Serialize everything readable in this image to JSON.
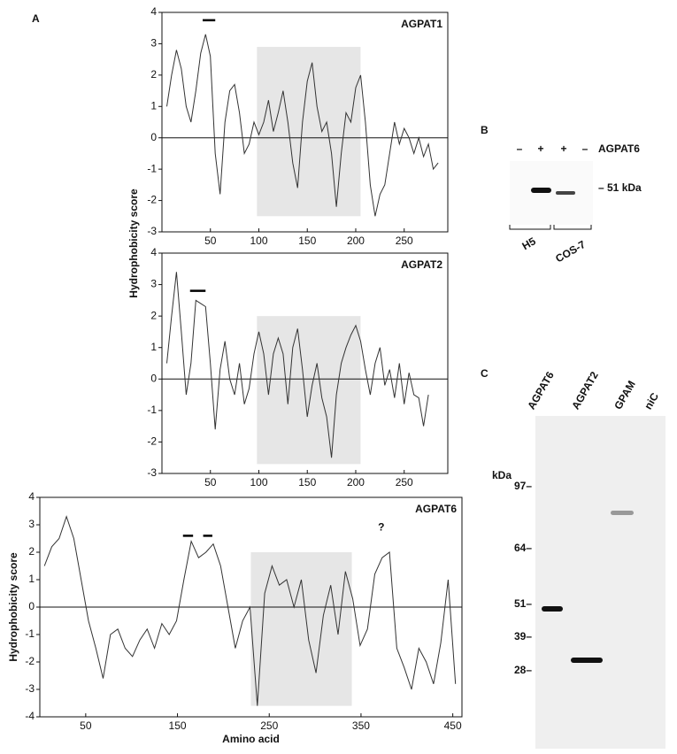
{
  "chart_data": [
    {
      "type": "line",
      "title": "AGPAT1",
      "ylabel": "Hydrophobicity score",
      "x": [
        5,
        10,
        15,
        20,
        25,
        30,
        35,
        40,
        45,
        50,
        55,
        60,
        65,
        70,
        75,
        80,
        85,
        90,
        95,
        100,
        105,
        110,
        115,
        120,
        125,
        130,
        135,
        140,
        145,
        150,
        155,
        160,
        165,
        170,
        175,
        180,
        185,
        190,
        195,
        200,
        205,
        210,
        215,
        220,
        225,
        230,
        235,
        240,
        245,
        250,
        255,
        260,
        265,
        270,
        275,
        280,
        285
      ],
      "series": [
        {
          "name": "AGPAT1",
          "color": "#333333",
          "values": [
            1.0,
            2.0,
            2.8,
            2.2,
            1.0,
            0.5,
            1.5,
            2.7,
            3.3,
            2.6,
            -0.5,
            -1.8,
            0.5,
            1.5,
            1.7,
            0.8,
            -0.5,
            -0.2,
            0.5,
            0.1,
            0.5,
            1.2,
            0.2,
            0.8,
            1.5,
            0.5,
            -0.8,
            -1.6,
            0.5,
            1.8,
            2.4,
            1.0,
            0.2,
            0.5,
            -0.5,
            -2.2,
            -0.5,
            0.8,
            0.5,
            1.6,
            2.0,
            0.5,
            -1.5,
            -2.5,
            -1.8,
            -1.5,
            -0.5,
            0.5,
            -0.2,
            0.3,
            0.0,
            -0.5,
            0.0,
            -0.6,
            -0.2,
            -1.0,
            -0.8
          ]
        }
      ],
      "xlim": [
        0,
        295
      ],
      "ylim": [
        -3,
        4
      ],
      "xticks": [
        50,
        100,
        150,
        200,
        250
      ],
      "yticks": [
        -3,
        -2,
        -1,
        0,
        1,
        2,
        3,
        4
      ],
      "zero_line": true,
      "highlight_x": [
        98,
        205
      ],
      "highlight_y": [
        -2.5,
        2.9
      ],
      "markers": [
        {
          "x": [
            42,
            55
          ],
          "y": 3.75
        }
      ]
    },
    {
      "type": "line",
      "title": "AGPAT2",
      "x": [
        5,
        10,
        15,
        20,
        25,
        30,
        35,
        40,
        45,
        50,
        55,
        60,
        65,
        70,
        75,
        80,
        85,
        90,
        95,
        100,
        105,
        110,
        115,
        120,
        125,
        130,
        135,
        140,
        145,
        150,
        155,
        160,
        165,
        170,
        175,
        180,
        185,
        190,
        195,
        200,
        205,
        210,
        215,
        220,
        225,
        230,
        235,
        240,
        245,
        250,
        255,
        260,
        265,
        270,
        275
      ],
      "series": [
        {
          "name": "AGPAT2",
          "color": "#333333",
          "values": [
            0.5,
            2.0,
            3.4,
            1.5,
            -0.5,
            0.5,
            2.5,
            2.4,
            2.3,
            0.5,
            -1.6,
            0.3,
            1.2,
            0.0,
            -0.5,
            0.5,
            -0.8,
            -0.3,
            0.8,
            1.5,
            0.8,
            -0.5,
            0.8,
            1.3,
            0.8,
            -0.8,
            1.0,
            1.6,
            0.3,
            -1.2,
            -0.2,
            0.5,
            -0.6,
            -1.2,
            -2.5,
            -0.5,
            0.5,
            1.0,
            1.4,
            1.7,
            1.2,
            0.3,
            -0.5,
            0.5,
            1.0,
            -0.2,
            0.3,
            -0.6,
            0.5,
            -0.8,
            0.2,
            -0.5,
            -0.6,
            -1.5,
            -0.5
          ]
        }
      ],
      "xlim": [
        0,
        295
      ],
      "ylim": [
        -3,
        4
      ],
      "xticks": [
        50,
        100,
        150,
        200,
        250
      ],
      "yticks": [
        -3,
        -2,
        -1,
        0,
        1,
        2,
        3,
        4
      ],
      "zero_line": true,
      "highlight_x": [
        98,
        205
      ],
      "highlight_y": [
        -2.7,
        2.0
      ],
      "markers": [
        {
          "x": [
            29,
            45
          ],
          "y": 2.8
        }
      ]
    },
    {
      "type": "line",
      "title": "AGPAT6",
      "ylabel": "Hydrophobicity score",
      "xlabel": "Amino acid",
      "x": [
        5,
        13,
        21,
        29,
        37,
        45,
        53,
        61,
        69,
        77,
        85,
        93,
        101,
        109,
        117,
        125,
        133,
        141,
        149,
        157,
        165,
        173,
        181,
        189,
        197,
        205,
        213,
        221,
        229,
        237,
        245,
        253,
        261,
        269,
        277,
        285,
        293,
        301,
        309,
        317,
        325,
        333,
        341,
        349,
        357,
        365,
        373,
        381,
        389,
        397,
        405,
        413,
        421,
        429,
        437,
        445,
        453
      ],
      "series": [
        {
          "name": "AGPAT6",
          "color": "#333333",
          "values": [
            1.5,
            2.2,
            2.5,
            3.3,
            2.5,
            1.0,
            -0.5,
            -1.5,
            -2.6,
            -1.0,
            -0.8,
            -1.5,
            -1.8,
            -1.2,
            -0.8,
            -1.5,
            -0.6,
            -1.0,
            -0.5,
            1.0,
            2.4,
            1.8,
            2.0,
            2.3,
            1.5,
            0.0,
            -1.5,
            -0.5,
            0.0,
            -3.6,
            0.5,
            1.5,
            0.8,
            1.0,
            0.0,
            1.0,
            -1.2,
            -2.4,
            -0.3,
            0.8,
            -1.0,
            1.3,
            0.3,
            -1.4,
            -0.8,
            1.2,
            1.8,
            2.0,
            -1.5,
            -2.2,
            -3.0,
            -1.5,
            -2.0,
            -2.8,
            -1.3,
            1.0,
            -2.8
          ]
        }
      ],
      "xlim": [
        0,
        460
      ],
      "ylim": [
        -4,
        4
      ],
      "xticks": [
        50,
        150,
        250,
        350,
        450
      ],
      "yticks": [
        -4,
        -3,
        -2,
        -1,
        0,
        1,
        2,
        3,
        4
      ],
      "zero_line": true,
      "highlight_x": [
        230,
        340
      ],
      "highlight_y": [
        -3.6,
        2.0
      ],
      "markers": [
        {
          "x": [
            156,
            167
          ],
          "y": 2.6
        },
        {
          "x": [
            178,
            188
          ],
          "y": 2.6
        }
      ],
      "annotations": [
        {
          "text": "?",
          "x": 372,
          "y": 2.9
        }
      ]
    }
  ],
  "panel_labels": [
    "A",
    "B",
    "C"
  ],
  "blot_b": {
    "lanes": [
      "–",
      "+",
      "+",
      "–"
    ],
    "protein": "AGPAT6",
    "marker": "– 51 kDa",
    "cells": [
      "H5",
      "COS-7"
    ]
  },
  "blot_c": {
    "lanes": [
      "AGPAT6",
      "AGPAT2",
      "GPAM",
      "niC"
    ],
    "unit": "kDa",
    "markers": [
      "97–",
      "64–",
      "51–",
      "39–",
      "28–"
    ]
  }
}
